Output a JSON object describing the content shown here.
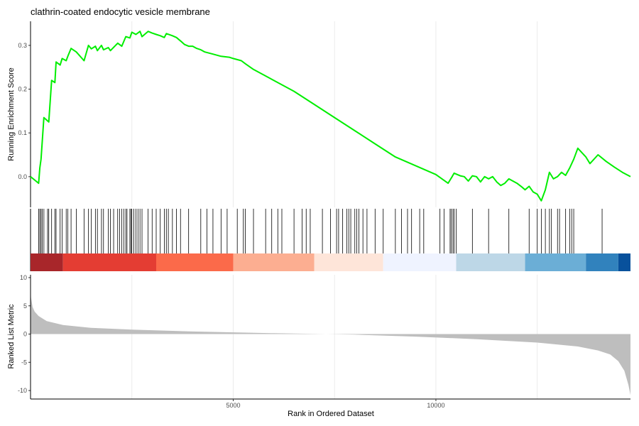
{
  "chart_data": {
    "type": "line",
    "title": "clathrin-coated endocytic vesicle membrane",
    "xlabel": "Rank in Ordered Dataset",
    "xlim": [
      0,
      14800
    ],
    "x_ticks": [
      5000,
      10000
    ],
    "x_tick_labels": [
      "5000",
      "10000"
    ],
    "grid": true,
    "colors": {
      "running_score": "#00ee00",
      "hit_line": "#000000",
      "metric_fill": "#bebebe"
    },
    "running_score": {
      "ylabel": "Running Enrichment Score",
      "ylim": [
        -0.07,
        0.355
      ],
      "y_ticks": [
        0.0,
        0.1,
        0.2,
        0.3
      ],
      "y_tick_labels": [
        "0.0",
        "0.1",
        "0.2",
        "0.3"
      ],
      "x": [
        0,
        200,
        230,
        260,
        330,
        450,
        520,
        600,
        630,
        730,
        780,
        880,
        920,
        1000,
        1130,
        1320,
        1430,
        1500,
        1600,
        1650,
        1750,
        1800,
        1920,
        1970,
        2150,
        2250,
        2350,
        2450,
        2500,
        2600,
        2700,
        2750,
        2900,
        3000,
        3100,
        3200,
        3300,
        3350,
        3500,
        3600,
        3700,
        3800,
        3900,
        4000,
        4100,
        4200,
        4300,
        4500,
        4700,
        4900,
        5000,
        5200,
        5300,
        5500,
        6000,
        6500,
        7000,
        7500,
        8000,
        8500,
        9000,
        9500,
        10000,
        10300,
        10400,
        10450,
        10600,
        10700,
        10800,
        10900,
        11000,
        11100,
        11200,
        11300,
        11400,
        11500,
        11600,
        11700,
        11800,
        11900,
        12000,
        12100,
        12200,
        12300,
        12400,
        12500,
        12600,
        12700,
        12800,
        12900,
        13000,
        13100,
        13200,
        13300,
        13400,
        13500,
        13700,
        13800,
        14000,
        14200,
        14400,
        14600,
        14800
      ],
      "y": [
        0.0,
        -0.015,
        0.02,
        0.04,
        0.135,
        0.125,
        0.22,
        0.215,
        0.262,
        0.255,
        0.27,
        0.265,
        0.275,
        0.293,
        0.285,
        0.265,
        0.3,
        0.292,
        0.298,
        0.288,
        0.3,
        0.29,
        0.295,
        0.288,
        0.305,
        0.298,
        0.32,
        0.317,
        0.33,
        0.325,
        0.332,
        0.32,
        0.332,
        0.328,
        0.325,
        0.322,
        0.318,
        0.327,
        0.322,
        0.318,
        0.31,
        0.302,
        0.298,
        0.298,
        0.293,
        0.29,
        0.285,
        0.28,
        0.275,
        0.273,
        0.27,
        0.265,
        0.258,
        0.245,
        0.22,
        0.195,
        0.165,
        0.135,
        0.105,
        0.075,
        0.045,
        0.025,
        0.005,
        -0.015,
        0.0,
        0.008,
        0.002,
        0.0,
        -0.01,
        0.002,
        0.0,
        -0.012,
        0.0,
        -0.005,
        0.0,
        -0.012,
        -0.02,
        -0.015,
        -0.005,
        -0.01,
        -0.015,
        -0.022,
        -0.03,
        -0.022,
        -0.035,
        -0.04,
        -0.055,
        -0.03,
        0.01,
        -0.005,
        0.0,
        0.01,
        0.003,
        0.02,
        0.04,
        0.065,
        0.045,
        0.03,
        0.05,
        0.035,
        0.022,
        0.01,
        0.0
      ]
    },
    "hits": [
      200,
      230,
      260,
      290,
      330,
      420,
      450,
      520,
      600,
      630,
      730,
      780,
      880,
      920,
      1000,
      1130,
      1320,
      1430,
      1500,
      1600,
      1650,
      1750,
      1800,
      1920,
      1970,
      2050,
      2150,
      2200,
      2250,
      2300,
      2350,
      2380,
      2450,
      2480,
      2500,
      2550,
      2600,
      2650,
      2700,
      2750,
      2900,
      3000,
      3100,
      3200,
      3300,
      3350,
      3400,
      3500,
      3600,
      3700,
      3900,
      4200,
      4350,
      4500,
      4700,
      4850,
      5100,
      5250,
      5300,
      5500,
      5800,
      5950,
      6100,
      6200,
      6500,
      6700,
      6800,
      6900,
      7200,
      7400,
      7550,
      7600,
      7700,
      7800,
      7850,
      7900,
      8000,
      8050,
      8100,
      8200,
      8300,
      8500,
      8700,
      9000,
      9150,
      9300,
      9400,
      9600,
      9700,
      10100,
      10200,
      10350,
      10380,
      10420,
      10450,
      10500,
      10900,
      11300,
      11800,
      12300,
      12500,
      12600,
      12700,
      12800,
      12850,
      13000,
      13050,
      13200,
      13300,
      13350,
      13400,
      14100
    ],
    "color_bands": [
      {
        "from": 0,
        "to": 800,
        "color": "#a8262a"
      },
      {
        "from": 800,
        "to": 3100,
        "color": "#e43d33"
      },
      {
        "from": 3100,
        "to": 5000,
        "color": "#fb6a4a"
      },
      {
        "from": 5000,
        "to": 7000,
        "color": "#fcae91"
      },
      {
        "from": 7000,
        "to": 8700,
        "color": "#fee5d9"
      },
      {
        "from": 8700,
        "to": 10500,
        "color": "#eff3ff"
      },
      {
        "from": 10500,
        "to": 12200,
        "color": "#bdd7e7"
      },
      {
        "from": 12200,
        "to": 13700,
        "color": "#6baed6"
      },
      {
        "from": 13700,
        "to": 14500,
        "color": "#3182bd"
      },
      {
        "from": 14500,
        "to": 14800,
        "color": "#08519c"
      }
    ],
    "ranked_metric": {
      "ylabel": "Ranked List Metric",
      "ylim": [
        -11.5,
        10.5
      ],
      "y_ticks": [
        10,
        5,
        0,
        -5,
        -10
      ],
      "y_tick_labels": [
        "10",
        "5",
        "0",
        "-5",
        "-10"
      ],
      "x": [
        0,
        10,
        50,
        100,
        200,
        400,
        800,
        1500,
        2500,
        4000,
        6000,
        7300,
        8000,
        9500,
        11000,
        12500,
        13500,
        14000,
        14300,
        14500,
        14650,
        14750,
        14800
      ],
      "y": [
        9.5,
        6.5,
        4.8,
        4.0,
        3.2,
        2.3,
        1.6,
        1.1,
        0.8,
        0.45,
        0.15,
        0.0,
        -0.1,
        -0.45,
        -0.9,
        -1.5,
        -2.2,
        -2.9,
        -3.6,
        -4.8,
        -6.5,
        -9.0,
        -10.8
      ]
    }
  }
}
